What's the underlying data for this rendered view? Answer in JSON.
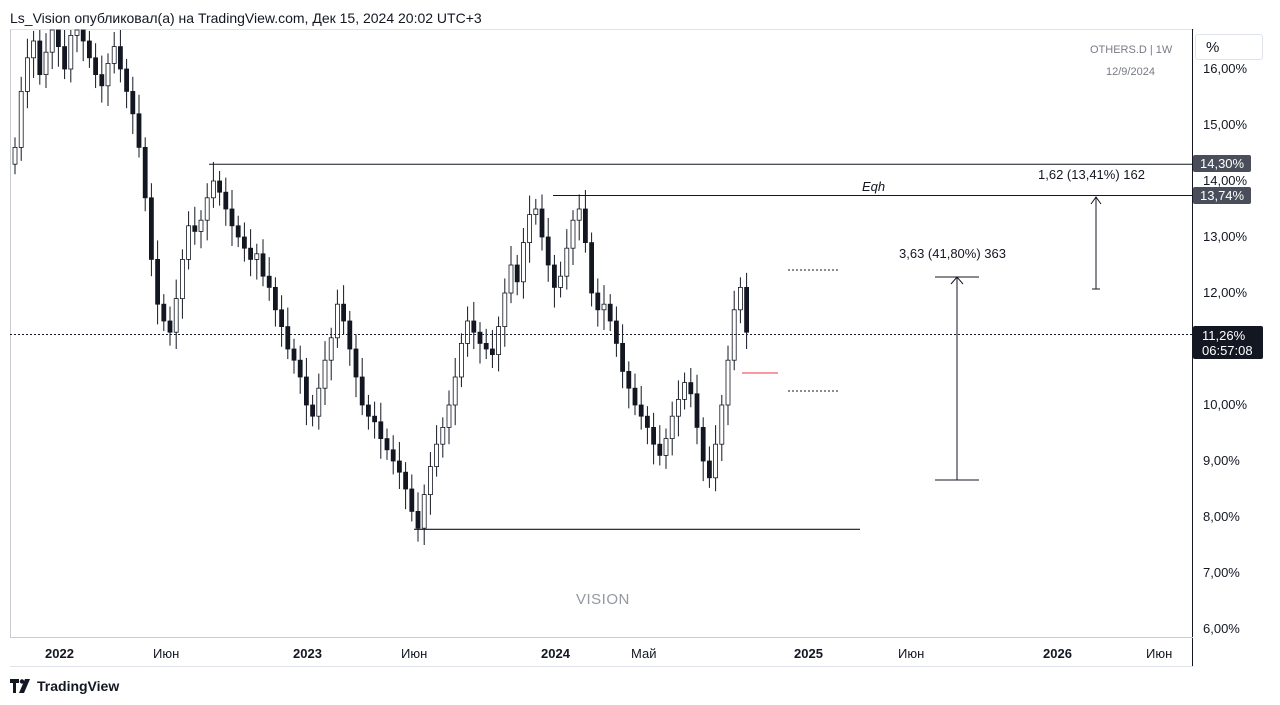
{
  "header": {
    "title": "Ls_Vision опубликовал(а) на TradingView.com, Дек 15, 2024 20:02 UTC+3"
  },
  "scale_button": {
    "label": "%"
  },
  "symbol": {
    "name": "OTHERS.D  |  1W",
    "date": "12/9/2024"
  },
  "watermark": "VISION",
  "logo": {
    "text": "TradingView"
  },
  "price_labels": {
    "level_high": "14,30%",
    "level_eqh": "13,74%",
    "current": "11,26%",
    "countdown": "06:57:08"
  },
  "annotations": {
    "eqh": "Eqh",
    "measure_1": "1,62 (13,41%) 162",
    "measure_2": "3,63 (41,80%) 363"
  },
  "colors": {
    "candle_down": "#131722",
    "candle_up": "#ffffff",
    "accent_line": "#f23645",
    "label_bg": "#4a4e5a"
  },
  "chart_data": {
    "type": "candlestick",
    "ylabel": "%",
    "ylim": [
      6.0,
      16.5
    ],
    "y_ticks": [
      "16,00%",
      "15,00%",
      "14,00%",
      "13,00%",
      "12,00%",
      "11,00%",
      "10,00%",
      "9,00%",
      "8,00%",
      "7,00%",
      "6,00%"
    ],
    "x_ticks": [
      {
        "label": "2022",
        "bold": true
      },
      {
        "label": "Июн",
        "bold": false
      },
      {
        "label": "2023",
        "bold": true
      },
      {
        "label": "Июн",
        "bold": false
      },
      {
        "label": "2024",
        "bold": true
      },
      {
        "label": "Май",
        "bold": false
      },
      {
        "label": "2025",
        "bold": true
      },
      {
        "label": "Июн",
        "bold": false
      },
      {
        "label": "2026",
        "bold": true
      },
      {
        "label": "Июн",
        "bold": false
      }
    ],
    "levels": {
      "high": 14.3,
      "eqh": 13.74,
      "current": 11.26,
      "low": 7.78
    },
    "closes": [
      14.6,
      15.6,
      16.2,
      16.5,
      15.9,
      16.3,
      16.7,
      16.4,
      16.0,
      16.6,
      16.8,
      16.5,
      16.2,
      15.9,
      15.7,
      16.1,
      16.4,
      16.0,
      15.6,
      15.2,
      14.6,
      13.7,
      12.6,
      11.8,
      11.5,
      11.3,
      11.9,
      12.6,
      13.2,
      13.1,
      13.3,
      13.7,
      14.0,
      13.8,
      13.5,
      13.2,
      13.0,
      12.8,
      12.6,
      12.7,
      12.3,
      12.1,
      11.7,
      11.4,
      11.0,
      10.8,
      10.5,
      10.0,
      9.8,
      10.3,
      10.8,
      11.2,
      11.8,
      11.5,
      11.0,
      10.5,
      10.0,
      9.8,
      9.7,
      9.4,
      9.2,
      9.0,
      8.8,
      8.5,
      8.1,
      7.8,
      8.4,
      8.9,
      9.3,
      9.6,
      10.0,
      10.5,
      11.1,
      11.5,
      11.3,
      11.1,
      11.0,
      10.9,
      11.4,
      12.0,
      12.5,
      12.2,
      12.9,
      13.4,
      13.5,
      13.0,
      12.5,
      12.1,
      12.3,
      12.8,
      13.3,
      13.5,
      12.9,
      12.0,
      11.7,
      11.8,
      11.5,
      11.1,
      10.6,
      10.3,
      10.0,
      9.8,
      9.6,
      9.3,
      9.1,
      9.4,
      9.8,
      10.1,
      10.4,
      10.2,
      9.6,
      9.0,
      8.7,
      9.3,
      10.0,
      10.8,
      11.7,
      12.1,
      11.3
    ]
  }
}
